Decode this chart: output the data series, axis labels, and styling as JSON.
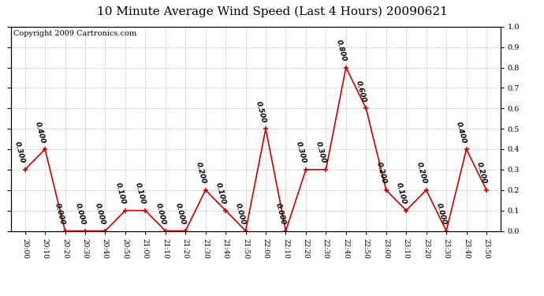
{
  "title": "10 Minute Average Wind Speed (Last 4 Hours) 20090621",
  "copyright": "Copyright 2009 Cartronics.com",
  "x_labels": [
    "20:00",
    "20:10",
    "20:20",
    "20:30",
    "20:40",
    "20:50",
    "21:00",
    "21:10",
    "21:20",
    "21:30",
    "21:40",
    "21:50",
    "22:00",
    "22:10",
    "22:20",
    "22:30",
    "22:40",
    "22:50",
    "23:00",
    "23:10",
    "23:20",
    "23:30",
    "23:40",
    "23:50"
  ],
  "y_values": [
    0.3,
    0.4,
    0.0,
    0.0,
    0.0,
    0.1,
    0.1,
    0.0,
    0.0,
    0.2,
    0.1,
    0.0,
    0.5,
    0.0,
    0.3,
    0.3,
    0.8,
    0.6,
    0.2,
    0.1,
    0.2,
    0.0,
    0.4,
    0.2
  ],
  "y_annotations": [
    "0.300",
    "0.400",
    "0.000",
    "0.000",
    "0.000",
    "0.100",
    "0.100",
    "0.000",
    "0.000",
    "0.200",
    "0.100",
    "0.000",
    "0.500",
    "0.000",
    "0.300",
    "0.300",
    "0.800",
    "0.600",
    "0.200",
    "0.100",
    "0.200",
    "0.000",
    "0.400",
    "0.200"
  ],
  "line_color": "#cc0000",
  "marker_color": "#cc0000",
  "bg_color": "#ffffff",
  "grid_color": "#bbbbbb",
  "ylim": [
    0.0,
    1.0
  ],
  "yticks": [
    0.0,
    0.1,
    0.2,
    0.3,
    0.4,
    0.5,
    0.6,
    0.7,
    0.8,
    0.9,
    1.0
  ],
  "title_fontsize": 11,
  "annotation_fontsize": 6.5,
  "copyright_fontsize": 7
}
